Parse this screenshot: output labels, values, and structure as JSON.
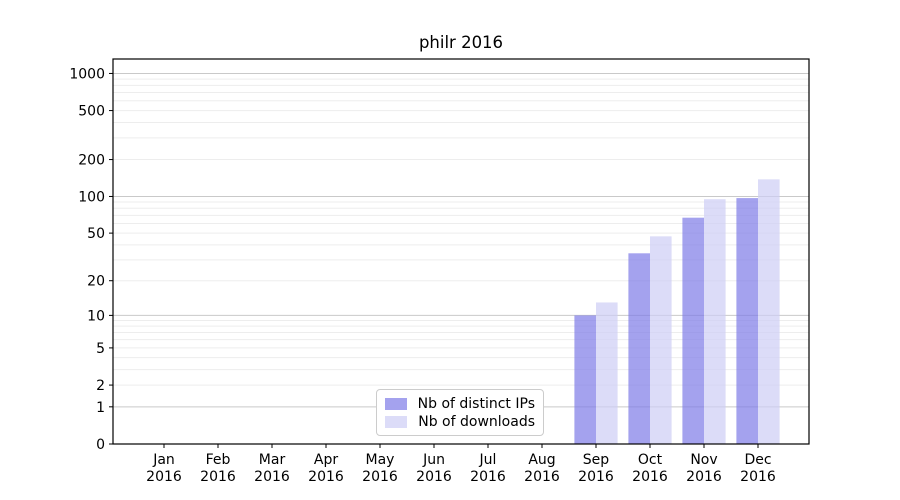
{
  "title": "philr 2016",
  "chart_data": {
    "type": "bar",
    "title": "philr 2016",
    "yscale": "log10(1+y)",
    "ylim": [
      0,
      1320
    ],
    "grid": "on",
    "legend_position": "bottom-center",
    "year_label": "2016",
    "categories": [
      "Jan",
      "Feb",
      "Mar",
      "Apr",
      "May",
      "Jun",
      "Jul",
      "Aug",
      "Sep",
      "Oct",
      "Nov",
      "Dec"
    ],
    "yticks": [
      0,
      1,
      2,
      5,
      10,
      20,
      50,
      100,
      200,
      500,
      1000
    ],
    "major_grid_at": [
      1,
      10,
      100,
      1000
    ],
    "series": [
      {
        "name": "Nb of distinct IPs",
        "color": "#7d7be7",
        "values": [
          0,
          0,
          0,
          0,
          0,
          0,
          0,
          0,
          10,
          34,
          67,
          97
        ]
      },
      {
        "name": "Nb of downloads",
        "color": "#cdcdf5",
        "values": [
          0,
          0,
          0,
          0,
          0,
          0,
          0,
          0,
          13,
          47,
          95,
          138
        ]
      }
    ],
    "colors": {
      "bar_opacity": 0.7,
      "grid_major": "#c9c9c9",
      "grid_minor": "#ededed",
      "axis": "#000000"
    }
  }
}
